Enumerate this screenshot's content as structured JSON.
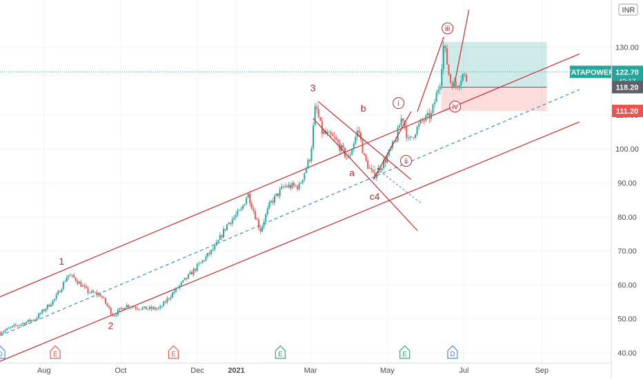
{
  "chart_data": {
    "type": "candlestick",
    "symbol": "TATAPOWER",
    "currency": "INR",
    "countdown": "42:17",
    "last_price": 122.7,
    "price_line_color": "#26a69a",
    "candle_up_color": "#26a69a",
    "candle_down_color": "#ef5350",
    "wave_color": "#b22a2a",
    "y_ticks": [
      40,
      50,
      60,
      70,
      80,
      90,
      100,
      110,
      130
    ],
    "y_tick_labels": [
      "40.00",
      "50.00",
      "60.00",
      "70.00",
      "80.00",
      "90.00",
      "100.00",
      "110.00",
      "130.00"
    ],
    "ylim": [
      37.5,
      140
    ],
    "x_ticks": [
      {
        "label": "Aug",
        "date": "2020-08-01"
      },
      {
        "label": "Oct",
        "date": "2020-10-01"
      },
      {
        "label": "Dec",
        "date": "2020-12-01"
      },
      {
        "label": "2021",
        "date": "2021-01-01",
        "bold": true
      },
      {
        "label": "Mar",
        "date": "2021-03-01"
      },
      {
        "label": "May",
        "date": "2021-05-01"
      },
      {
        "label": "Jul",
        "date": "2021-07-01"
      },
      {
        "label": "Sep",
        "date": "2021-09-01"
      }
    ],
    "xlim": [
      "2020-06-27",
      "2021-10-01"
    ],
    "price_path": [
      [
        "2020-06-27",
        46
      ],
      [
        "2020-07-10",
        48
      ],
      [
        "2020-07-25",
        50
      ],
      [
        "2020-08-10",
        56
      ],
      [
        "2020-08-20",
        63
      ],
      [
        "2020-08-25",
        62
      ],
      [
        "2020-09-05",
        58
      ],
      [
        "2020-09-15",
        57
      ],
      [
        "2020-09-25",
        51
      ],
      [
        "2020-10-05",
        54
      ],
      [
        "2020-10-20",
        53
      ],
      [
        "2020-11-01",
        53
      ],
      [
        "2020-11-10",
        57
      ],
      [
        "2020-11-25",
        63
      ],
      [
        "2020-12-05",
        67
      ],
      [
        "2020-12-15",
        71
      ],
      [
        "2020-12-25",
        78
      ],
      [
        "2021-01-05",
        82
      ],
      [
        "2021-01-10",
        87
      ],
      [
        "2021-01-20",
        76
      ],
      [
        "2021-01-28",
        84
      ],
      [
        "2021-02-08",
        89
      ],
      [
        "2021-02-20",
        89
      ],
      [
        "2021-03-01",
        98
      ],
      [
        "2021-03-05",
        113
      ],
      [
        "2021-03-10",
        105
      ],
      [
        "2021-03-20",
        103
      ],
      [
        "2021-03-31",
        97
      ],
      [
        "2021-04-08",
        106
      ],
      [
        "2021-04-13",
        97
      ],
      [
        "2021-04-20",
        92
      ],
      [
        "2021-04-30",
        97
      ],
      [
        "2021-05-08",
        103
      ],
      [
        "2021-05-13",
        110
      ],
      [
        "2021-05-18",
        102
      ],
      [
        "2021-05-28",
        108
      ],
      [
        "2021-06-05",
        110
      ],
      [
        "2021-06-12",
        120
      ],
      [
        "2021-06-15",
        131
      ],
      [
        "2021-06-20",
        120
      ],
      [
        "2021-06-25",
        118.5
      ],
      [
        "2021-06-30",
        122
      ],
      [
        "2021-07-04",
        120
      ]
    ],
    "channel_lines": [
      {
        "from": [
          "2020-06-27",
          56.5
        ],
        "to": [
          "2021-10-01",
          128
        ]
      },
      {
        "from": [
          "2020-06-27",
          37.5
        ],
        "to": [
          "2021-10-01",
          108
        ]
      },
      {
        "from": [
          "2020-06-27",
          45
        ],
        "to": [
          "2021-10-01",
          117.5
        ],
        "dashed": true
      }
    ],
    "wave_lines": [
      {
        "from": [
          "2021-03-07",
          114
        ],
        "to": [
          "2021-05-20",
          91
        ]
      },
      {
        "from": [
          "2021-03-03",
          109
        ],
        "to": [
          "2021-05-25",
          76
        ]
      },
      {
        "from": [
          "2021-04-20",
          91
        ],
        "to": [
          "2021-05-20",
          111
        ]
      },
      {
        "from": [
          "2021-05-25",
          111
        ],
        "to": [
          "2021-06-15",
          133
        ]
      },
      {
        "from": [
          "2021-06-24",
          120
        ],
        "to": [
          "2021-07-05",
          141
        ]
      }
    ],
    "dotted_trend": {
      "from": [
        "2021-04-20",
        95
      ],
      "to": [
        "2021-05-28",
        84
      ]
    },
    "position_tool": {
      "start": "2021-06-13",
      "end": "2021-09-05",
      "entry": 118.2,
      "target": 131.5,
      "stop": 111.2
    },
    "price_scale_labels": [
      {
        "text": "122.70",
        "price": 122.7,
        "bg": "#26a69a"
      },
      {
        "text": "118.20",
        "price": 118.2,
        "bg": "#5d606b"
      },
      {
        "text": "111.20",
        "price": 111.2,
        "bg": "#ef5350"
      }
    ],
    "wave_labels": [
      {
        "text": "1",
        "date": "2020-08-15",
        "price": 66
      },
      {
        "text": "2",
        "date": "2020-09-23",
        "price": 47
      },
      {
        "text": "3",
        "date": "2021-03-03",
        "price": 117
      },
      {
        "text": "a",
        "date": "2021-04-03",
        "price": 92
      },
      {
        "text": "b",
        "date": "2021-04-12",
        "price": 111
      },
      {
        "text": "c4",
        "date": "2021-04-21",
        "price": 85
      }
    ],
    "circled_labels": [
      {
        "text": "i",
        "date": "2021-05-10",
        "price": 113.5
      },
      {
        "text": "ii",
        "date": "2021-05-16",
        "price": 96.5
      },
      {
        "text": "iii",
        "date": "2021-06-18",
        "price": 135.5
      },
      {
        "text": "iv",
        "date": "2021-06-24",
        "price": 112.5
      }
    ],
    "event_markers": [
      {
        "text": "D",
        "date": "2020-06-27",
        "color": "#4a8ad4"
      },
      {
        "text": "E",
        "date": "2020-08-10",
        "color": "#e05a4a"
      },
      {
        "text": "E",
        "date": "2020-11-12",
        "color": "#e05a4a"
      },
      {
        "text": "E",
        "date": "2021-02-05",
        "color": "#2fa87a"
      },
      {
        "text": "E",
        "date": "2021-05-15",
        "color": "#2fa87a"
      },
      {
        "text": "D",
        "date": "2021-06-22",
        "color": "#4a8ad4"
      }
    ]
  }
}
